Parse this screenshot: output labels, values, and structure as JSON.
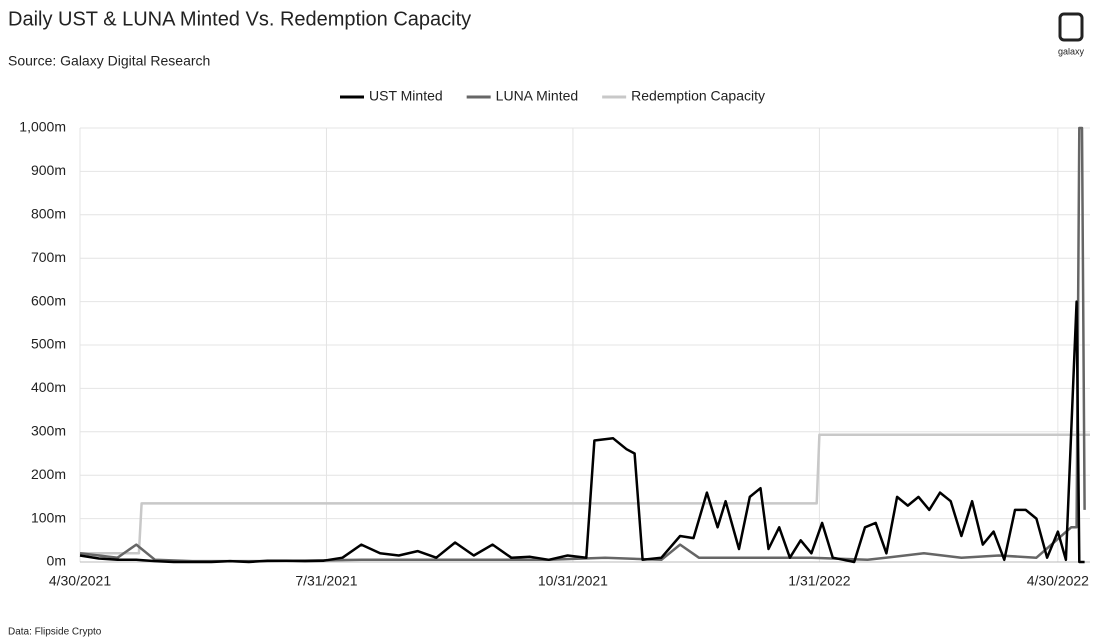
{
  "brand": "galaxy",
  "footnote": "Data: Flipside Crypto",
  "chart_data": {
    "type": "line",
    "title": "Daily UST & LUNA Minted Vs. Redemption Capacity",
    "subtitle": "Source: Galaxy Digital Research",
    "xlim": [
      "4/30/2021",
      "5/12/2022"
    ],
    "xticks": [
      "4/30/2021",
      "7/31/2021",
      "10/31/2021",
      "1/31/2022",
      "4/30/2022"
    ],
    "ylim": [
      0,
      1000
    ],
    "yticks": [
      {
        "value": 0,
        "label": "0m"
      },
      {
        "value": 100,
        "label": "100m"
      },
      {
        "value": 200,
        "label": "200m"
      },
      {
        "value": 300,
        "label": "300m"
      },
      {
        "value": 400,
        "label": "400m"
      },
      {
        "value": 500,
        "label": "500m"
      },
      {
        "value": 600,
        "label": "600m"
      },
      {
        "value": 700,
        "label": "700m"
      },
      {
        "value": 800,
        "label": "800m"
      },
      {
        "value": 900,
        "label": "900m"
      },
      {
        "value": 1000,
        "label": "1,000m"
      }
    ],
    "grid": true,
    "legend": "top",
    "series": [
      {
        "name": "UST Minted",
        "color": "#000000",
        "x": [
          "4/30/2021",
          "5/7/2021",
          "5/14/2021",
          "5/21/2021",
          "5/28/2021",
          "6/4/2021",
          "6/11/2021",
          "6/18/2021",
          "6/25/2021",
          "7/2/2021",
          "7/9/2021",
          "7/16/2021",
          "7/23/2021",
          "7/30/2021",
          "8/6/2021",
          "8/13/2021",
          "8/20/2021",
          "8/27/2021",
          "9/3/2021",
          "9/10/2021",
          "9/17/2021",
          "9/24/2021",
          "10/1/2021",
          "10/8/2021",
          "10/15/2021",
          "10/22/2021",
          "10/29/2021",
          "11/5/2021",
          "11/8/2021",
          "11/15/2021",
          "11/20/2021",
          "11/23/2021",
          "11/26/2021",
          "12/3/2021",
          "12/10/2021",
          "12/15/2021",
          "12/20/2021",
          "12/24/2021",
          "12/27/2021",
          "1/1/2022",
          "1/5/2022",
          "1/9/2022",
          "1/12/2022",
          "1/16/2022",
          "1/20/2022",
          "1/24/2022",
          "1/28/2022",
          "2/1/2022",
          "2/5/2022",
          "2/9/2022",
          "2/13/2022",
          "2/17/2022",
          "2/21/2022",
          "2/25/2022",
          "3/1/2022",
          "3/5/2022",
          "3/9/2022",
          "3/13/2022",
          "3/17/2022",
          "3/21/2022",
          "3/25/2022",
          "3/29/2022",
          "4/2/2022",
          "4/6/2022",
          "4/10/2022",
          "4/14/2022",
          "4/18/2022",
          "4/22/2022",
          "4/26/2022",
          "4/30/2022",
          "5/3/2022",
          "5/7/2022",
          "5/8/2022",
          "5/10/2022"
        ],
        "values": [
          15,
          8,
          5,
          5,
          2,
          0,
          0,
          0,
          2,
          0,
          3,
          3,
          2,
          3,
          10,
          40,
          20,
          15,
          25,
          10,
          45,
          15,
          40,
          10,
          12,
          5,
          15,
          10,
          280,
          285,
          260,
          250,
          5,
          10,
          60,
          55,
          160,
          80,
          140,
          30,
          150,
          170,
          30,
          80,
          10,
          50,
          20,
          90,
          10,
          5,
          0,
          80,
          90,
          20,
          150,
          130,
          150,
          120,
          160,
          140,
          60,
          140,
          40,
          70,
          5,
          120,
          120,
          100,
          10,
          70,
          5,
          600,
          0,
          0
        ]
      },
      {
        "name": "LUNA Minted",
        "color": "#666666",
        "x": [
          "4/30/2021",
          "5/14/2021",
          "5/21/2021",
          "5/28/2021",
          "6/11/2021",
          "7/9/2021",
          "8/13/2021",
          "9/17/2021",
          "10/22/2021",
          "11/12/2021",
          "12/3/2021",
          "12/10/2021",
          "12/17/2021",
          "1/7/2022",
          "1/28/2022",
          "2/18/2022",
          "3/11/2022",
          "3/25/2022",
          "4/8/2022",
          "4/22/2022",
          "5/5/2022",
          "5/7/2022",
          "5/8/2022",
          "5/9/2022",
          "5/10/2022"
        ],
        "values": [
          20,
          10,
          40,
          5,
          2,
          2,
          5,
          5,
          5,
          10,
          5,
          40,
          10,
          10,
          10,
          5,
          20,
          10,
          15,
          10,
          80,
          80,
          1000,
          1000,
          120
        ]
      },
      {
        "name": "Redemption Capacity",
        "color": "#c8c8c8",
        "x": [
          "4/30/2021",
          "5/22/2021",
          "5/23/2021",
          "1/30/2022",
          "1/31/2022",
          "5/12/2022"
        ],
        "values": [
          20,
          20,
          135,
          135,
          293,
          293
        ]
      }
    ]
  }
}
